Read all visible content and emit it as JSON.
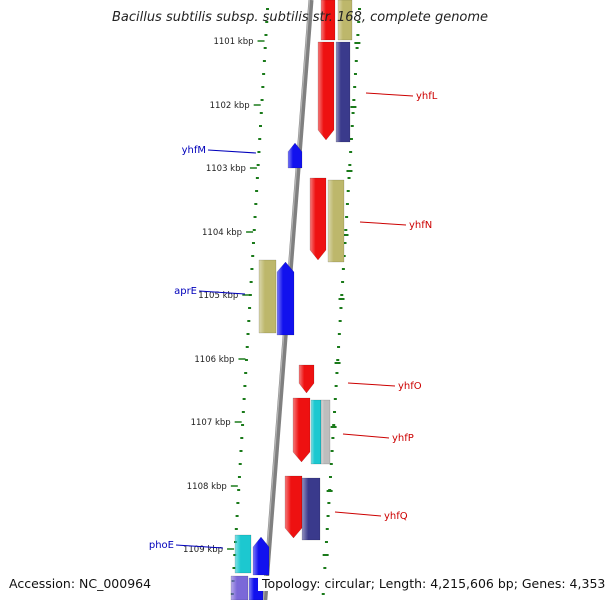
{
  "title": "Bacillus subtilis subsp. subtilis str. 168, complete genome",
  "footer": {
    "accession": "Accession: NC_000964",
    "topology": "Topology: circular; Length: 4,215,606 bp; Genes: 4,353"
  },
  "colors": {
    "red": "#ee1111",
    "blue": "#1111ee",
    "navy": "#3a3a8c",
    "khaki": "#bdb76b",
    "cyan": "#1cc8d0",
    "grey": "#bdbdbd",
    "lavender": "#7b68d8",
    "backbone": "#808080",
    "ticks": "#1a7a1a",
    "label_red": "#cc0000",
    "label_blue": "#0000bb"
  },
  "scale": [
    "1101 kbp",
    "1102 kbp",
    "1103 kbp",
    "1104 kbp",
    "1105 kbp",
    "1106 kbp",
    "1107 kbp",
    "1108 kbp",
    "1109 kbp"
  ],
  "genes": [
    {
      "name": "yhfL",
      "color": "red"
    },
    {
      "name": "yhfM",
      "color": "blue"
    },
    {
      "name": "yhfN",
      "color": "red"
    },
    {
      "name": "aprE",
      "color": "blue"
    },
    {
      "name": "yhfO",
      "color": "red"
    },
    {
      "name": "yhfP",
      "color": "red"
    },
    {
      "name": "yhfQ",
      "color": "red"
    },
    {
      "name": "phoE",
      "color": "blue"
    }
  ]
}
